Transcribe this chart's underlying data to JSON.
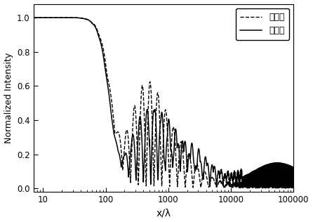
{
  "title": "",
  "xlabel": "x/λ",
  "ylabel": "Normalized Intensity",
  "xlim": [
    7,
    100000
  ],
  "ylim": [
    -0.02,
    1.05
  ],
  "legend": [
    {
      "label": "透射型",
      "linestyle": "dashed",
      "color": "#000000"
    },
    {
      "label": "反射型",
      "linestyle": "solid",
      "color": "#000000"
    }
  ],
  "yticks": [
    0.0,
    0.2,
    0.4,
    0.6,
    0.8,
    1.0
  ],
  "xticks": [
    10,
    100,
    1000,
    10000,
    100000
  ],
  "background": "#ffffff",
  "line_color": "#000000"
}
